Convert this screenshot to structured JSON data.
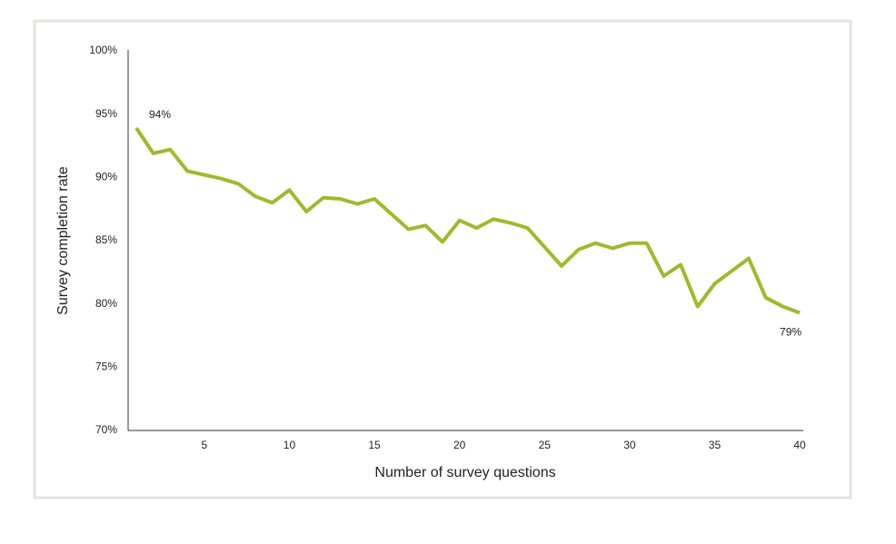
{
  "chart_data": {
    "type": "line",
    "x_label": "Number of survey questions",
    "y_label": "Survey completion rate",
    "x": [
      1,
      2,
      3,
      4,
      5,
      6,
      7,
      8,
      9,
      10,
      11,
      12,
      13,
      14,
      15,
      16,
      17,
      18,
      19,
      20,
      21,
      22,
      23,
      24,
      25,
      26,
      27,
      28,
      29,
      30,
      31,
      32,
      33,
      34,
      35,
      36,
      37,
      38,
      39,
      40
    ],
    "series": [
      {
        "name": "Survey completion rate",
        "color": "#9dbb2c",
        "values": [
          93.9,
          91.9,
          92.2,
          90.5,
          90.2,
          89.9,
          89.5,
          88.5,
          88.0,
          89.0,
          87.3,
          88.4,
          88.3,
          87.9,
          88.3,
          87.1,
          85.9,
          86.2,
          84.9,
          86.6,
          86.0,
          86.7,
          86.4,
          86.0,
          84.5,
          83.0,
          84.3,
          84.8,
          84.4,
          84.8,
          84.8,
          82.2,
          83.1,
          79.8,
          81.6,
          82.6,
          83.6,
          80.5,
          79.8,
          79.3
        ],
        "value_labels": [
          "94%",
          null,
          null,
          null,
          null,
          null,
          null,
          null,
          null,
          null,
          null,
          null,
          null,
          null,
          null,
          null,
          null,
          null,
          null,
          null,
          null,
          null,
          null,
          null,
          null,
          null,
          null,
          null,
          null,
          null,
          null,
          null,
          null,
          null,
          null,
          null,
          null,
          null,
          null,
          "79%"
        ]
      }
    ],
    "xlim": [
      0.52,
      40.21
    ],
    "xticks": [
      5,
      10,
      15,
      20,
      25,
      30,
      35,
      40
    ],
    "ylim": [
      70,
      100
    ],
    "yticks": [
      {
        "value": 70,
        "label": "70%"
      },
      {
        "value": 75,
        "label": "75%"
      },
      {
        "value": 80,
        "label": "80%"
      },
      {
        "value": 85,
        "label": "85%"
      },
      {
        "value": 90,
        "label": "90%"
      },
      {
        "value": 95,
        "label": "95%"
      },
      {
        "value": 100,
        "label": "100%"
      }
    ],
    "grid": false
  }
}
